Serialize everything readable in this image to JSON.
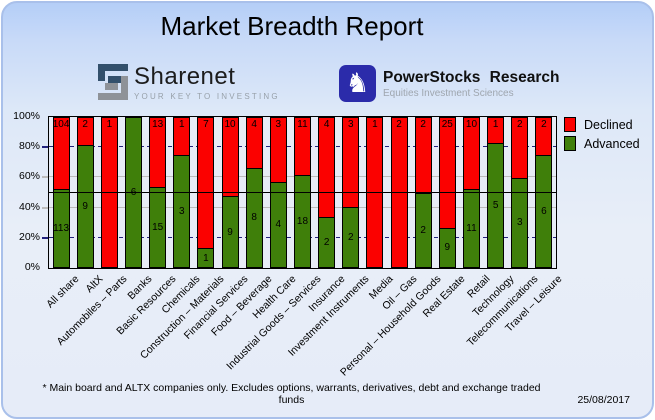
{
  "report": {
    "title": "Market Breadth Report",
    "footnote": "* Main board and ALTX companies only. Excludes options, warrants, derivatives, debt and exchange traded funds",
    "date": "25/08/2017"
  },
  "branding": {
    "sharenet": {
      "name": "Sharenet",
      "tagline": "YOUR KEY TO INVESTING"
    },
    "powerstocks": {
      "name": "PowerStocks  Research",
      "tagline": "Equities Investment Sciences",
      "knight_glyph": "♞"
    }
  },
  "chart_data": {
    "type": "bar",
    "stacked": true,
    "normalized_to": "100%",
    "categories": [
      "All share",
      "AltX",
      "Automobiles – Parts",
      "Banks",
      "Basic Resources",
      "Chemicals",
      "Construction – Materials",
      "Financial Services",
      "Food – Beverage",
      "Health Care",
      "Industrial Goods – Services",
      "Insurance",
      "Investment Instruments",
      "Media",
      "Oil – Gas",
      "Personal – Household Goods",
      "Real Estate",
      "Retail",
      "Technology",
      "Telecommunications",
      "Travel – Leisure"
    ],
    "series": [
      {
        "name": "Declined",
        "color": "#fb0100",
        "values": [
          104,
          2,
          1,
          0,
          13,
          1,
          7,
          10,
          4,
          3,
          11,
          4,
          3,
          1,
          2,
          2,
          25,
          10,
          1,
          2,
          2
        ]
      },
      {
        "name": "Advanced",
        "color": "#3f7f0a",
        "values": [
          113,
          9,
          0,
          6,
          15,
          3,
          1,
          9,
          8,
          4,
          18,
          2,
          2,
          0,
          0,
          2,
          9,
          11,
          5,
          3,
          6
        ]
      }
    ],
    "y_axis": {
      "ticks": [
        "0%",
        "20%",
        "40%",
        "60%",
        "80%",
        "100%"
      ],
      "range": [
        0,
        100
      ]
    },
    "gridlines": [
      {
        "pct": 20,
        "style": "dashed",
        "color": "#23237d"
      },
      {
        "pct": 40,
        "style": "solid",
        "color": "#bcbcbc"
      },
      {
        "pct": 60,
        "style": "solid",
        "color": "#bcbcbc"
      },
      {
        "pct": 80,
        "style": "dashed",
        "color": "#23237d"
      }
    ],
    "reference_line": {
      "pct": 50,
      "color": "#000000"
    },
    "legend_position": "top-right"
  }
}
